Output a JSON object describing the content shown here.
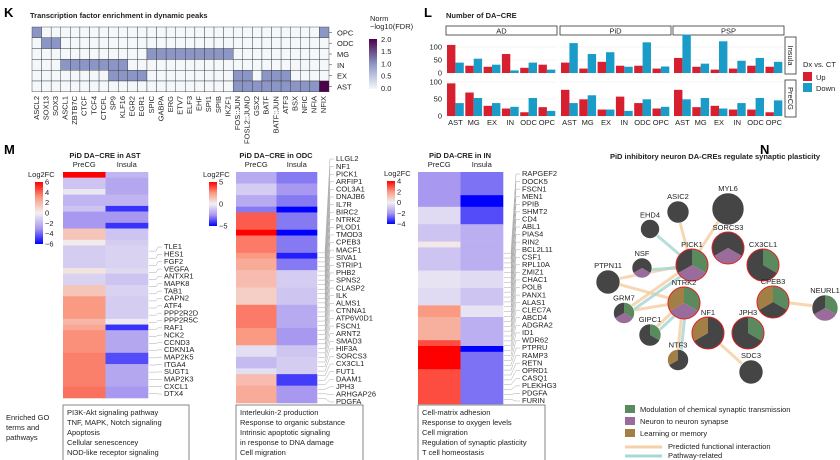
{
  "panel_labels": {
    "K": "K",
    "L": "L",
    "M": "M",
    "N": "N"
  },
  "colors": {
    "up": "#d62030",
    "down": "#1a9cc8",
    "green": "#5b8a5f",
    "purple": "#9a6c9b",
    "brown": "#a27f45",
    "dark": "#454545",
    "ring": "#e02020",
    "predicted": "#f6d0a6",
    "pathway": "#a8d8d4"
  },
  "chart_data": [
    {
      "id": "K",
      "type": "heatmap",
      "title": "Transcription factor enrichment in dynamic peaks",
      "rows": [
        "OPC",
        "ODC",
        "MG",
        "IN",
        "EX",
        "AST"
      ],
      "columns": [
        "ASCL2",
        "SOX13",
        "SOX3",
        "ASCL1",
        "ZBTB7C",
        "CTCF",
        "TCF4",
        "CTCFL",
        "SP9",
        "KLF16",
        "EGR2",
        "EGR1",
        "SPIC",
        "GABPA",
        "ERG",
        "ETV7",
        "ELF3",
        "EHF",
        "SPI1",
        "SPIB",
        "IKZF1",
        "FOS::JUN",
        "FOSL2::JUND",
        "GSX2",
        "BATF",
        "BATF::JUN",
        "ATF3",
        "BSX",
        "NFIC",
        "NFIA",
        "NFIX"
      ],
      "values": [
        [
          1,
          0,
          0,
          0,
          0,
          0,
          0,
          0,
          0,
          0,
          0,
          0,
          0,
          0,
          0,
          0,
          0,
          0,
          0,
          0,
          0,
          0,
          0,
          0,
          0,
          0,
          0,
          0,
          0,
          0,
          1
        ],
        [
          0,
          1,
          1,
          0,
          0,
          0,
          0,
          0,
          0,
          0,
          0,
          0,
          0,
          0,
          0,
          0,
          0,
          0,
          0,
          0,
          0,
          0,
          0,
          0,
          0,
          0,
          0,
          0,
          0,
          0,
          0
        ],
        [
          0,
          0,
          0,
          0,
          0,
          0,
          0,
          0,
          0,
          0,
          0,
          0,
          1,
          1,
          1,
          1,
          1,
          1,
          1,
          1,
          1,
          0,
          0,
          0,
          0,
          0,
          0,
          0,
          0,
          0,
          0
        ],
        [
          0,
          0,
          0,
          1,
          1,
          1,
          1,
          1,
          1,
          1,
          0,
          0,
          0,
          0,
          0,
          0,
          0,
          0,
          0,
          0,
          0,
          0,
          0,
          0,
          0,
          0,
          0,
          0,
          0,
          0,
          0
        ],
        [
          0,
          0,
          0,
          0,
          0,
          0,
          0,
          0,
          1,
          1,
          1,
          1,
          0,
          0,
          0,
          0,
          0,
          0,
          0,
          0,
          0,
          1,
          1,
          0,
          1,
          1,
          1,
          0,
          0,
          0,
          0
        ],
        [
          0,
          0,
          0,
          0,
          0,
          0,
          0,
          0,
          0,
          0,
          0,
          0,
          0,
          0,
          0,
          0,
          0,
          0,
          0,
          0,
          0,
          1,
          1,
          1,
          1,
          1,
          1,
          1,
          1,
          1,
          2
        ]
      ],
      "legend": {
        "title_line1": "Norm",
        "title_line2": "−log10(FDR)",
        "ticks": [
          "2.0",
          "1.5",
          "1.0",
          "0.5",
          "0.0"
        ],
        "range": [
          0,
          2
        ]
      },
      "colorscale": [
        "#f4f8fb",
        "#8c96c6",
        "#4d004b"
      ]
    },
    {
      "id": "L",
      "type": "bar",
      "title": "Number of DA−CRE",
      "facets": [
        "AD",
        "PiD",
        "PSP"
      ],
      "row_facets": [
        "Insula",
        "PreCG"
      ],
      "categories": [
        "AST",
        "MG",
        "EX",
        "IN",
        "ODC",
        "OPC"
      ],
      "y_ticks": [
        "100",
        "50",
        "0"
      ],
      "legend": {
        "title": "Dx vs. CT",
        "entries": [
          "Up",
          "Down"
        ]
      },
      "data": {
        "Insula": {
          "AD": {
            "Up": [
              108,
              28,
              24,
              73,
              20,
              32
            ],
            "Down": [
              40,
              55,
              32,
              10,
              40,
              13
            ]
          },
          "PiD": {
            "Up": [
              40,
              17,
              43,
              28,
              28,
              17
            ],
            "Down": [
              115,
              73,
              80,
              24,
              118,
              25
            ]
          },
          "PSP": {
            "Up": [
              58,
              24,
              13,
              17,
              28,
              24
            ],
            "Down": [
              148,
              36,
              122,
              47,
              58,
              43
            ]
          }
        },
        "PreCG": {
          "AD": {
            "Up": [
              96,
              69,
              30,
              22,
              11,
              26
            ],
            "Down": [
              38,
              53,
              38,
              27,
              53,
              15
            ]
          },
          "PiD": {
            "Up": [
              77,
              49,
              19,
              57,
              38,
              22
            ],
            "Down": [
              38,
              61,
              19,
              15,
              49,
              27
            ]
          },
          "PSP": {
            "Up": [
              77,
              26,
              30,
              19,
              19,
              11
            ],
            "Down": [
              49,
              53,
              22,
              38,
              53,
              46
            ]
          }
        }
      }
    },
    {
      "id": "M-AST",
      "type": "heatmap",
      "title": "PiD DA−CRE in AST",
      "columns": [
        "PreCG",
        "Insula"
      ],
      "colorbar": {
        "title": "Log2FC",
        "ticks": [
          "6",
          "4",
          "2",
          "0",
          "−2",
          "−4",
          "−6"
        ],
        "range": [
          -6,
          6
        ]
      },
      "row_blocks": [
        [
          1,
          6,
          -2
        ],
        [
          2,
          -1.5,
          -2.5
        ],
        [
          1,
          -0.3,
          -2.5
        ],
        [
          2,
          -2,
          -2
        ],
        [
          1,
          -1.5,
          -5
        ],
        [
          2,
          -3,
          -3
        ],
        [
          1,
          -3,
          -5
        ],
        [
          2,
          1.5,
          -1.5
        ],
        [
          1,
          0.2,
          -1.2
        ],
        [
          4,
          -1.2,
          -1
        ],
        [
          1,
          0.5,
          -0.8
        ],
        [
          2,
          -1,
          -1.5
        ],
        [
          2,
          1.5,
          -1
        ],
        [
          4,
          3,
          -1.2
        ],
        [
          1,
          2,
          -0.2
        ],
        [
          1,
          2.5,
          -5
        ],
        [
          4,
          3.2,
          -2.5
        ],
        [
          2,
          3.5,
          -4.5
        ],
        [
          4,
          3.5,
          -2.5
        ],
        [
          2,
          3.8,
          -3
        ]
      ],
      "genes": [
        "TLE1",
        "HES1",
        "FGF2",
        "VEGFA",
        "ANTXR1",
        "MAPK8",
        "TAB1",
        "CAPN2",
        "ATF4",
        "PPP2R2D",
        "PPP2R5C",
        "RAF1",
        "NCK2",
        "CCND3",
        "CDKN1A",
        "MAP2K5",
        "ITGA4",
        "SUGT1",
        "MAP2K3",
        "CXCL1",
        "DTX4"
      ],
      "go_terms": [
        "PI3K-Akt signaling pathway",
        "TNF, MAPK, Notch signaling",
        "Apoptosis",
        "Cellular senescencey",
        "NOD-like receptor signaling"
      ]
    },
    {
      "id": "M-ODC",
      "type": "heatmap",
      "title": "PiD DA−CRE in ODC",
      "columns": [
        "PreCG",
        "Insula"
      ],
      "colorbar": {
        "title": "Log2FC",
        "ticks": [
          "5",
          "0",
          "−5"
        ],
        "range": [
          -5,
          5
        ]
      },
      "row_blocks": [
        [
          2,
          -2,
          -3
        ],
        [
          2,
          -1,
          -2.5
        ],
        [
          2,
          -2,
          -3
        ],
        [
          1,
          -3,
          -5
        ],
        [
          3,
          3.5,
          -3
        ],
        [
          1,
          5,
          -5
        ],
        [
          3,
          3,
          -3
        ],
        [
          1,
          2.5,
          -4.5
        ],
        [
          2,
          2,
          -3
        ],
        [
          3,
          1.5,
          -1
        ],
        [
          3,
          1,
          -1.2
        ],
        [
          4,
          3,
          -2
        ],
        [
          3,
          2.5,
          -2.5
        ],
        [
          2,
          -0.5,
          -1.2
        ],
        [
          2,
          -1.5,
          -1
        ],
        [
          1,
          -0.5,
          -1
        ],
        [
          2,
          1.5,
          -4
        ],
        [
          3,
          2,
          -2.5
        ]
      ],
      "genes": [
        "LLGL2",
        "NF1",
        "PICK1",
        "ARFIP1",
        "COL3A1",
        "DNAJB6",
        "IL7R",
        "BIRC2",
        "NTRK2",
        "PLOD1",
        "TMOD3",
        "CPEB3",
        "MACF1",
        "SIVA1",
        "STRIP1",
        "PHB2",
        "SPNS2",
        "CLASP2",
        "ILK",
        "ALMS1",
        "CTNNA1",
        "ATP6V0D1",
        "FSCN1",
        "ARNT2",
        "SMAD3",
        "HIF3A",
        "SORCS3",
        "CX3CL1",
        "FUT1",
        "DAAM1",
        "JPH3",
        "ARHGAP26",
        "PDGFA"
      ],
      "go_terms": [
        "Interleukin-2 production",
        "Response to organic substance",
        "Intrinsic apoptotic signaling",
        "in response to DNA damage",
        "Cell migration"
      ]
    },
    {
      "id": "M-IN",
      "type": "heatmap",
      "title": "PiD DA-CRE in IN",
      "columns": [
        "PreCG",
        "Insula"
      ],
      "colorbar": {
        "title": "Log2FC",
        "ticks": [
          "4",
          "2",
          "0",
          "−2",
          "−4"
        ],
        "range": [
          -4,
          4
        ]
      },
      "row_blocks": [
        [
          4,
          -2,
          -2.5
        ],
        [
          2,
          -2,
          -4
        ],
        [
          3,
          -0.5,
          -3
        ],
        [
          3,
          -1,
          -1.5
        ],
        [
          1,
          0.2,
          -1.5
        ],
        [
          4,
          -1,
          -1.5
        ],
        [
          3,
          -0.3,
          -0.5
        ],
        [
          3,
          -0.5,
          -1
        ],
        [
          2,
          2,
          -0.3
        ],
        [
          4,
          1.5,
          -1.5
        ],
        [
          1,
          3,
          -1.5
        ],
        [
          1,
          4,
          -4
        ],
        [
          3,
          4,
          -2.5
        ],
        [
          6,
          3,
          -2.5
        ]
      ],
      "genes": [
        "RAPGEF2",
        "DOCK5",
        "FSCN1",
        "MEN1",
        "PPIB",
        "SHMT2",
        "CD4",
        "ABL1",
        "PIAS4",
        "RIN2",
        "BCL2L11",
        "CSF1",
        "RPL10A",
        "ZMIZ1",
        "CHAC1",
        "POLB",
        "PANX1",
        "ALAS1",
        "CLEC7A",
        "ABCD4",
        "ADGRA2",
        "ID1",
        "WDR62",
        "PTPRU",
        "RAMP3",
        "RETN",
        "OPRD1",
        "CASQ1",
        "PLEKHG3",
        "PDGFA",
        "FURIN"
      ],
      "go_terms": [
        "Cell-matrix adhesion",
        "Response to oxygen levels",
        "Cell migration",
        "Regulation of synaptic plasticity",
        "T cell homeostasis"
      ]
    },
    {
      "id": "N",
      "type": "network",
      "title": "PiD inhibitory neuron DA-CREs regulate synaptic plasticity",
      "nodes": [
        {
          "name": "MYL6",
          "slices": [
            [
              "dark",
              1
            ]
          ],
          "highlighted": false
        },
        {
          "name": "ASIC2",
          "slices": [
            [
              "dark",
              1
            ]
          ],
          "highlighted": false
        },
        {
          "name": "EHD4",
          "slices": [
            [
              "dark",
              1
            ]
          ],
          "highlighted": false
        },
        {
          "name": "SORCS3",
          "slices": [
            [
              "dark",
              0.333
            ],
            [
              "purple",
              0.334
            ],
            [
              "dark",
              0.333
            ]
          ],
          "highlighted": true
        },
        {
          "name": "PICK1",
          "slices": [
            [
              "green",
              0.333
            ],
            [
              "purple",
              0.334
            ],
            [
              "dark",
              0.333
            ]
          ],
          "highlighted": true
        },
        {
          "name": "CX3CL1",
          "slices": [
            [
              "green",
              0.333
            ],
            [
              "dark",
              0.667
            ]
          ],
          "highlighted": true
        },
        {
          "name": "NSF",
          "slices": [
            [
              "dark",
              0.333
            ],
            [
              "purple",
              0.334
            ],
            [
              "dark",
              0.333
            ]
          ],
          "highlighted": false
        },
        {
          "name": "PTPN11",
          "slices": [
            [
              "dark",
              1
            ]
          ],
          "highlighted": false
        },
        {
          "name": "NTRK2",
          "slices": [
            [
              "green",
              0.333
            ],
            [
              "purple",
              0.334
            ],
            [
              "brown",
              0.333
            ]
          ],
          "highlighted": true
        },
        {
          "name": "CPEB3",
          "slices": [
            [
              "green",
              0.333
            ],
            [
              "dark",
              0.334
            ],
            [
              "brown",
              0.333
            ]
          ],
          "highlighted": true
        },
        {
          "name": "NEURL1",
          "slices": [
            [
              "green",
              0.333
            ],
            [
              "purple",
              0.334
            ],
            [
              "dark",
              0.333
            ]
          ],
          "highlighted": false
        },
        {
          "name": "GRM7",
          "slices": [
            [
              "green",
              0.333
            ],
            [
              "purple",
              0.334
            ],
            [
              "dark",
              0.333
            ]
          ],
          "highlighted": false
        },
        {
          "name": "GIPC1",
          "slices": [
            [
              "green",
              0.333
            ],
            [
              "dark",
              0.667
            ]
          ],
          "highlighted": false
        },
        {
          "name": "NF1",
          "slices": [
            [
              "dark",
              0.667
            ],
            [
              "brown",
              0.333
            ]
          ],
          "highlighted": true
        },
        {
          "name": "JPH3",
          "slices": [
            [
              "green",
              0.333
            ],
            [
              "dark",
              0.667
            ]
          ],
          "highlighted": true
        },
        {
          "name": "NTF3",
          "slices": [
            [
              "dark",
              0.667
            ],
            [
              "brown",
              0.333
            ]
          ],
          "highlighted": false
        },
        {
          "name": "SDC3",
          "slices": [
            [
              "dark",
              1
            ]
          ],
          "highlighted": false
        }
      ],
      "edges": [
        [
          "MYL6",
          "PICK1",
          "predicted"
        ],
        [
          "ASIC2",
          "PICK1",
          "predicted"
        ],
        [
          "PTPN11",
          "NTRK2",
          "predicted"
        ],
        [
          "PTPN11",
          "PICK1",
          "predicted"
        ],
        [
          "GRM7",
          "NTRK2",
          "predicted"
        ],
        [
          "GRM7",
          "PICK1",
          "predicted"
        ],
        [
          "GIPC1",
          "NTRK2",
          "predicted"
        ],
        [
          "NTF3",
          "NTRK2",
          "predicted"
        ],
        [
          "NF1",
          "SDC3",
          "predicted"
        ],
        [
          "CPEB3",
          "NEURL1",
          "predicted"
        ],
        [
          "EHD4",
          "PICK1",
          "pathway"
        ],
        [
          "NSF",
          "PICK1",
          "pathway"
        ],
        [
          "GRM7",
          "PICK1",
          "pathway"
        ],
        [
          "GIPC1",
          "NTRK2",
          "pathway"
        ],
        [
          "NTF3",
          "NTRK2",
          "pathway"
        ]
      ],
      "legend": {
        "categories": [
          [
            "green",
            "Modulation of chemical synaptic transmission"
          ],
          [
            "purple",
            "Neuron to neuron synapse"
          ],
          [
            "brown",
            "Learning or memory"
          ]
        ],
        "edges": [
          [
            "predicted",
            "Predicted functional interaction"
          ],
          [
            "pathway",
            "Pathway-related"
          ]
        ]
      }
    }
  ],
  "go_label": [
    "Enriched GO",
    "terms and",
    "pathways"
  ]
}
